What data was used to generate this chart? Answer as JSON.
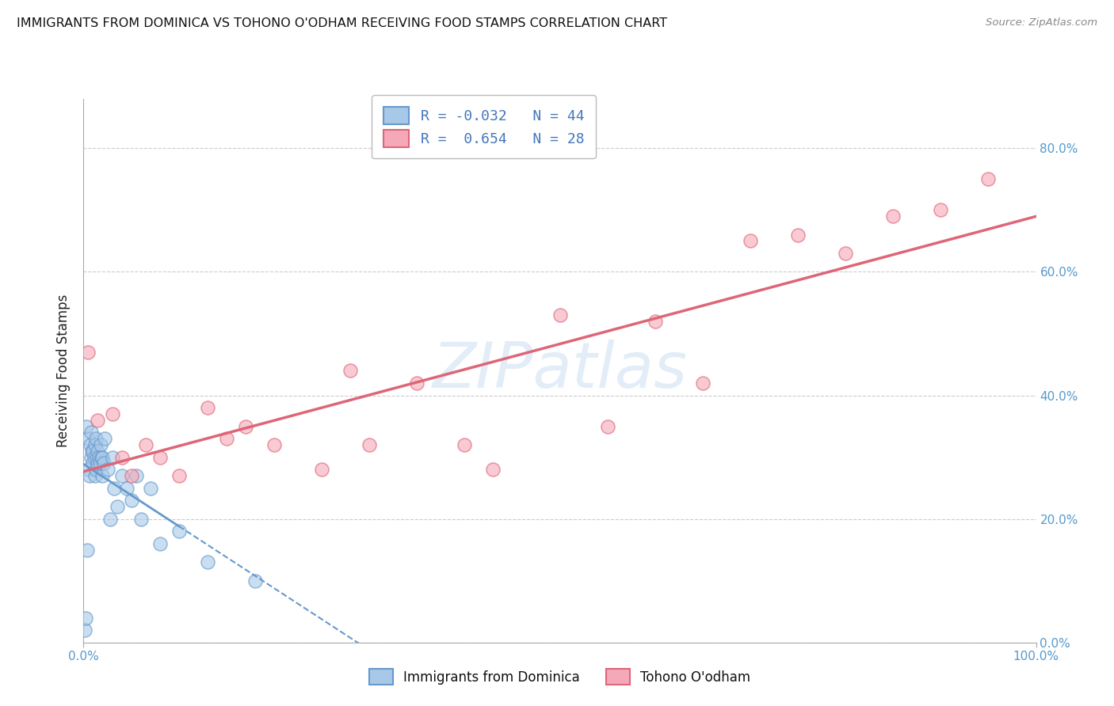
{
  "title": "IMMIGRANTS FROM DOMINICA VS TOHONO O'ODHAM RECEIVING FOOD STAMPS CORRELATION CHART",
  "source": "Source: ZipAtlas.com",
  "ylabel": "Receiving Food Stamps",
  "watermark": "ZIPatlas",
  "legend_label1": "Immigrants from Dominica",
  "legend_label2": "Tohono O'odham",
  "r1": "-0.032",
  "n1": "44",
  "r2": "0.654",
  "n2": "28",
  "color_blue": "#a8c8e8",
  "color_pink": "#f5a8b8",
  "edge_blue": "#6699cc",
  "edge_pink": "#dd6677",
  "ytick_vals": [
    0,
    20,
    40,
    60,
    80
  ],
  "ytick_labels": [
    "0.0%",
    "20.0%",
    "40.0%",
    "60.0%",
    "80.0%"
  ],
  "xtick_vals": [
    0,
    100
  ],
  "xtick_labels": [
    "0.0%",
    "100.0%"
  ],
  "xlim": [
    0,
    100
  ],
  "ylim": [
    0,
    88
  ],
  "blue_x": [
    0.1,
    0.2,
    0.3,
    0.4,
    0.5,
    0.5,
    0.6,
    0.7,
    0.8,
    0.8,
    0.9,
    1.0,
    1.0,
    1.1,
    1.2,
    1.2,
    1.3,
    1.3,
    1.4,
    1.5,
    1.5,
    1.6,
    1.7,
    1.8,
    1.9,
    2.0,
    2.0,
    2.1,
    2.2,
    2.5,
    2.8,
    3.0,
    3.2,
    3.5,
    4.0,
    4.5,
    5.0,
    5.5,
    6.0,
    7.0,
    8.0,
    10.0,
    13.0,
    18.0
  ],
  "blue_y": [
    2,
    4,
    35,
    15,
    28,
    33,
    27,
    32,
    30,
    34,
    31,
    29,
    31,
    30,
    32,
    27,
    33,
    28,
    30,
    31,
    29,
    30,
    29,
    32,
    30,
    27,
    30,
    29,
    33,
    28,
    20,
    30,
    25,
    22,
    27,
    25,
    23,
    27,
    20,
    25,
    16,
    18,
    13,
    10
  ],
  "pink_x": [
    0.5,
    1.5,
    3.0,
    4.0,
    5.0,
    6.5,
    8.0,
    10.0,
    13.0,
    15.0,
    17.0,
    20.0,
    25.0,
    28.0,
    30.0,
    35.0,
    40.0,
    43.0,
    50.0,
    55.0,
    60.0,
    65.0,
    70.0,
    75.0,
    80.0,
    85.0,
    90.0,
    95.0
  ],
  "pink_y": [
    47,
    36,
    37,
    30,
    27,
    32,
    30,
    27,
    38,
    33,
    35,
    32,
    28,
    44,
    32,
    42,
    32,
    28,
    53,
    35,
    52,
    42,
    65,
    66,
    63,
    69,
    70,
    75
  ]
}
